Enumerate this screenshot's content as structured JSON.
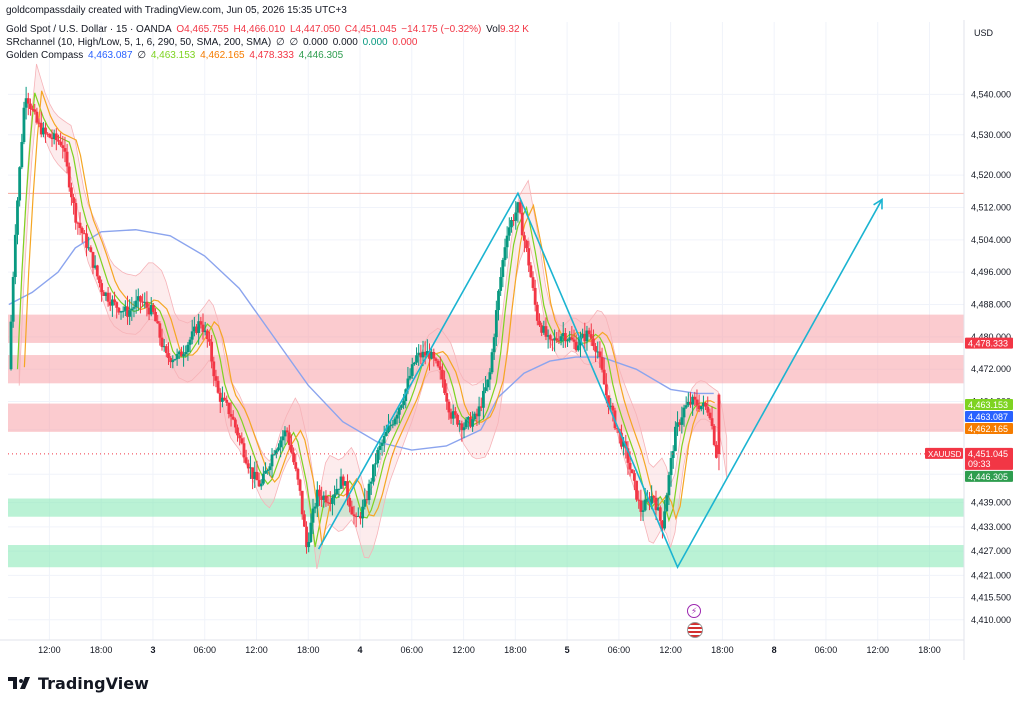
{
  "header": {
    "credit": "goldcompassdaily created with TradingView.com, Jun 05, 2026 15:35 UTC+3",
    "symbol_line": {
      "name": "Gold Spot / U.S. Dollar · 15 · OANDA",
      "open": "O4,465.755",
      "high": "H4,466.010",
      "low": "L4,447.050",
      "close": "C4,451.045",
      "change": "−14.175 (−0.32%)",
      "vol_label": "Vol",
      "vol_value": "9.32 K"
    },
    "indicator1": {
      "name": "SRchannel (10, High/Low, 5, 1, 6, 290, 50, SMA, 200, SMA)",
      "values": [
        "∅",
        "∅",
        "0.000",
        "0.000",
        "0.000",
        "0.000"
      ]
    },
    "indicator2": {
      "name": "Golden Compass",
      "values": [
        "4,463.087",
        "∅",
        "4,463.153",
        "4,462.165",
        "4,478.333",
        "4,446.305"
      ]
    }
  },
  "currency": "USD",
  "colors": {
    "up_candle": "#089981",
    "down_candle": "#f23645",
    "resistance_zone": "#f7a1a8",
    "support_zone": "#8ce9b9",
    "projection_line": "#1bb4d1",
    "sma_blue": "#8ba4ee",
    "ema_green": "#7ed321",
    "ema_orange": "#f5a623",
    "band_red": "#f9c9cc"
  },
  "chart_data": {
    "type": "candlestick",
    "symbol": "XAUUSD",
    "timeframe": "15",
    "ylim": [
      4405,
      4548
    ],
    "y_ticks": [
      4410,
      4415.5,
      4421,
      4427,
      4433,
      4439,
      4446,
      4457,
      4464,
      4472,
      4480,
      4488,
      4496,
      4504,
      4512,
      4520,
      4530,
      4540
    ],
    "y_tick_labels": [
      "4,410.000",
      "4,415.500",
      "4,421.000",
      "4,427.000",
      "4,433.000",
      "4,439.000",
      "4,446.000",
      "4,457.000",
      "4,464.000",
      "4,472.000",
      "4,480.000",
      "4,488.000",
      "4,496.000",
      "4,504.000",
      "4,512.000",
      "4,520.000",
      "4,530.000",
      "4,540.000"
    ],
    "x_ticks": [
      {
        "t": 12,
        "label": "12:00"
      },
      {
        "t": 18,
        "label": "18:00"
      },
      {
        "t": 24,
        "label": "3"
      },
      {
        "t": 30,
        "label": "06:00"
      },
      {
        "t": 36,
        "label": "12:00"
      },
      {
        "t": 42,
        "label": "18:00"
      },
      {
        "t": 48,
        "label": "4"
      },
      {
        "t": 54,
        "label": "06:00"
      },
      {
        "t": 60,
        "label": "12:00"
      },
      {
        "t": 66,
        "label": "18:00"
      },
      {
        "t": 72,
        "label": "5"
      },
      {
        "t": 78,
        "label": "06:00"
      },
      {
        "t": 84,
        "label": "12:00"
      },
      {
        "t": 90,
        "label": "18:00"
      },
      {
        "t": 96,
        "label": "8"
      },
      {
        "t": 102,
        "label": "06:00"
      },
      {
        "t": 108,
        "label": "12:00"
      },
      {
        "t": 114,
        "label": "18:00"
      }
    ],
    "x_range": [
      7.2,
      118
    ],
    "price_path": [
      [
        7.3,
        4472
      ],
      [
        8,
        4505
      ],
      [
        9.2,
        4541
      ],
      [
        10.5,
        4533
      ],
      [
        11.5,
        4530
      ],
      [
        13.5,
        4528
      ],
      [
        15,
        4510
      ],
      [
        16.5,
        4502
      ],
      [
        18,
        4492
      ],
      [
        19.5,
        4488
      ],
      [
        21,
        4486
      ],
      [
        22.5,
        4489
      ],
      [
        24,
        4486
      ],
      [
        25.5,
        4475
      ],
      [
        27,
        4475
      ],
      [
        28.5,
        4480
      ],
      [
        29.5,
        4484
      ],
      [
        30.5,
        4478
      ],
      [
        31.5,
        4466
      ],
      [
        33,
        4461
      ],
      [
        34.5,
        4452
      ],
      [
        35.5,
        4446
      ],
      [
        36.5,
        4443
      ],
      [
        38,
        4452
      ],
      [
        39.5,
        4457
      ],
      [
        41,
        4442
      ],
      [
        41.8,
        4428
      ],
      [
        43,
        4441
      ],
      [
        44.5,
        4440
      ],
      [
        46,
        4445
      ],
      [
        47.5,
        4434
      ],
      [
        48.5,
        4438
      ],
      [
        50,
        4451
      ],
      [
        51.5,
        4458
      ],
      [
        53,
        4465
      ],
      [
        54.5,
        4475
      ],
      [
        56,
        4476
      ],
      [
        57.5,
        4470
      ],
      [
        58.5,
        4461
      ],
      [
        60,
        4458
      ],
      [
        61.5,
        4460
      ],
      [
        63,
        4470
      ],
      [
        64,
        4490
      ],
      [
        65,
        4506
      ],
      [
        66.3,
        4512
      ],
      [
        67.5,
        4499
      ],
      [
        68.5,
        4485
      ],
      [
        70,
        4478
      ],
      [
        71.5,
        4481
      ],
      [
        73,
        4478
      ],
      [
        74.5,
        4481
      ],
      [
        75.5,
        4477
      ],
      [
        76.5,
        4466
      ],
      [
        77.5,
        4459
      ],
      [
        79,
        4450
      ],
      [
        80.5,
        4437
      ],
      [
        82,
        4441
      ],
      [
        83,
        4433
      ],
      [
        84.5,
        4456
      ],
      [
        85.5,
        4462
      ],
      [
        86.5,
        4464
      ],
      [
        87.5,
        4463
      ],
      [
        88.5,
        4462
      ],
      [
        89.3,
        4451
      ]
    ],
    "resistance_zones": [
      [
        4478.5,
        4485.5
      ],
      [
        4468.5,
        4475.5
      ],
      [
        4456.5,
        4463.5
      ]
    ],
    "support_zones": [
      [
        4435.5,
        4440
      ],
      [
        4423,
        4428.5
      ]
    ],
    "horizontal_line": 4515.5,
    "projection_path": [
      [
        43.2,
        4427.5
      ],
      [
        66.3,
        4515.5
      ],
      [
        84.8,
        4423
      ],
      [
        108.5,
        4514
      ]
    ],
    "sma_line": [
      [
        7.3,
        4488
      ],
      [
        10,
        4491
      ],
      [
        13,
        4496
      ],
      [
        15,
        4502
      ],
      [
        18,
        4506
      ],
      [
        22,
        4506.5
      ],
      [
        26,
        4505
      ],
      [
        30,
        4500
      ],
      [
        34,
        4492
      ],
      [
        38,
        4480
      ],
      [
        42,
        4468
      ],
      [
        46,
        4459
      ],
      [
        50,
        4454
      ],
      [
        54,
        4452
      ],
      [
        58,
        4453
      ],
      [
        62,
        4457
      ],
      [
        64,
        4465
      ],
      [
        67,
        4471
      ],
      [
        70,
        4474
      ],
      [
        73,
        4475
      ],
      [
        76,
        4475
      ],
      [
        80,
        4472
      ],
      [
        84,
        4467
      ],
      [
        87,
        4466
      ],
      [
        89,
        4466
      ]
    ],
    "axis_badges": [
      {
        "label": "4,478.333",
        "value": 4478.333,
        "color": "#f23645"
      },
      {
        "label": "4,463.153",
        "value": 4463.153,
        "color": "#7ed321"
      },
      {
        "label": "4,463.087",
        "value": 4463.087,
        "color": "#2962ff"
      },
      {
        "label": "4,462.165",
        "value": 4462.165,
        "color": "#f57c00"
      },
      {
        "label": "4,451.045",
        "value": 4451.045,
        "color": "#f23645"
      },
      {
        "label": "4,446.305",
        "value": 4446.305,
        "color": "#2e9d4f"
      }
    ],
    "symbol_badge": "XAUUSD",
    "countdown": "09:33",
    "last_price": 4451.045
  },
  "branding": {
    "logo_text": "TradingView"
  },
  "event_icons": [
    "lightning-icon",
    "us-flag-icon"
  ]
}
